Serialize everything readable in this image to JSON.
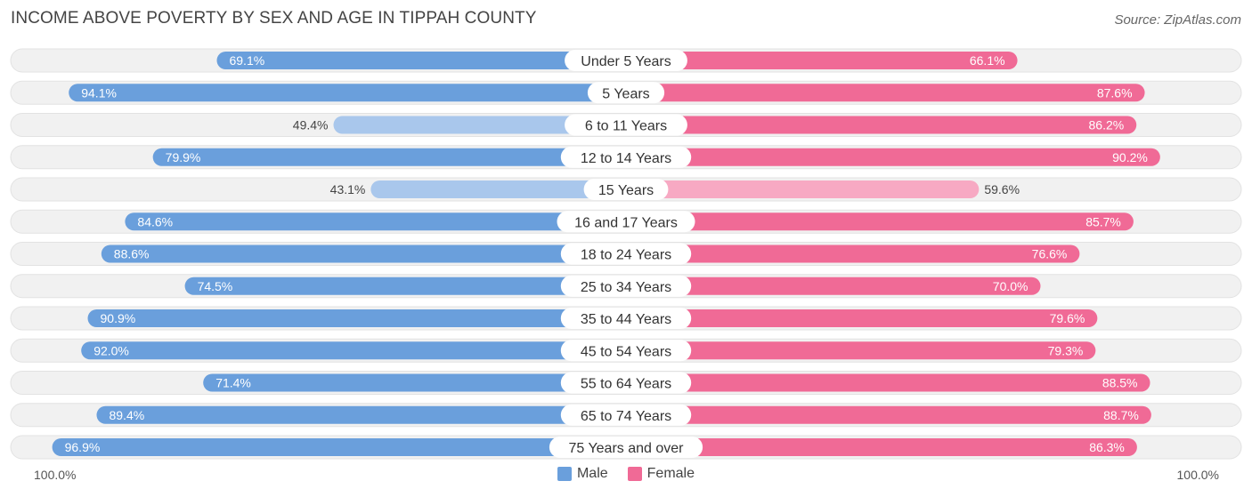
{
  "header": {
    "title": "INCOME ABOVE POVERTY BY SEX AND AGE IN TIPPAH COUNTY",
    "source": "Source: ZipAtlas.com"
  },
  "colors": {
    "male_strong": "#6a9fdc",
    "male_light": "#a9c7ec",
    "female_strong": "#f06a96",
    "female_light": "#f7a9c3",
    "track": "#f1f1f1"
  },
  "legend": {
    "male": "Male",
    "female": "Female"
  },
  "axis": {
    "left_label": "100.0%",
    "right_label": "100.0%"
  },
  "chart_data": {
    "type": "bar",
    "orientation": "horizontal-diverging",
    "title": "INCOME ABOVE POVERTY BY SEX AND AGE IN TIPPAH COUNTY",
    "xlim": [
      0,
      100
    ],
    "categories": [
      "Under 5 Years",
      "5 Years",
      "6 to 11 Years",
      "12 to 14 Years",
      "15 Years",
      "16 and 17 Years",
      "18 to 24 Years",
      "25 to 34 Years",
      "35 to 44 Years",
      "45 to 54 Years",
      "55 to 64 Years",
      "65 to 74 Years",
      "75 Years and over"
    ],
    "series": [
      {
        "name": "Male",
        "values": [
          69.1,
          94.1,
          49.4,
          79.9,
          43.1,
          84.6,
          88.6,
          74.5,
          90.9,
          92.0,
          71.4,
          89.4,
          96.9
        ],
        "labels": [
          "69.1%",
          "94.1%",
          "49.4%",
          "79.9%",
          "43.1%",
          "84.6%",
          "88.6%",
          "74.5%",
          "90.9%",
          "92.0%",
          "71.4%",
          "89.4%",
          "96.9%"
        ]
      },
      {
        "name": "Female",
        "values": [
          66.1,
          87.6,
          86.2,
          90.2,
          59.6,
          85.7,
          76.6,
          70.0,
          79.6,
          79.3,
          88.5,
          88.7,
          86.3
        ],
        "labels": [
          "66.1%",
          "87.6%",
          "86.2%",
          "90.2%",
          "59.6%",
          "85.7%",
          "76.6%",
          "70.0%",
          "79.6%",
          "79.3%",
          "88.5%",
          "88.7%",
          "86.3%"
        ]
      }
    ]
  }
}
